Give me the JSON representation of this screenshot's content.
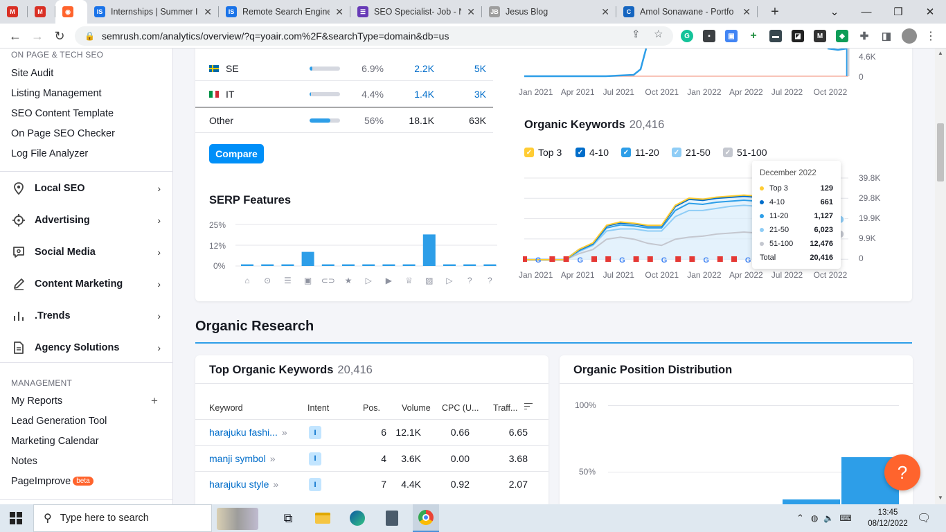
{
  "browser": {
    "tabs": [
      {
        "title": "",
        "favicon": "gmail-icon",
        "color": "#d93025"
      },
      {
        "title": "",
        "favicon": "gmail-icon",
        "color": "#d93025"
      },
      {
        "title": "",
        "favicon": "semrush-icon",
        "color": "#ff642d"
      },
      {
        "title": "Internships | Summer Int",
        "favicon": "IS",
        "color": "#1a73e8"
      },
      {
        "title": "Remote Search Engine O",
        "favicon": "IS",
        "color": "#1a73e8"
      },
      {
        "title": "SEO Specialist- Job - Nit",
        "favicon": "form-icon",
        "color": "#673ab7"
      },
      {
        "title": "Jesus Blog",
        "favicon": "JB",
        "color": "#9e9e9e"
      },
      {
        "title": "Amol Sonawane - Portfo",
        "favicon": "C",
        "color": "#1565c0"
      }
    ],
    "url": "semrush.com/analytics/overview/?q=yoair.com%2F&searchType=domain&db=us"
  },
  "sidebar": {
    "section_onpage": "ON PAGE & TECH SEO",
    "onpage_links": [
      "Site Audit",
      "Listing Management",
      "SEO Content Template",
      "On Page SEO Checker",
      "Log File Analyzer"
    ],
    "main_items": [
      {
        "label": "Local SEO",
        "icon": "location-pin-icon"
      },
      {
        "label": "Advertising",
        "icon": "crosshair-icon"
      },
      {
        "label": "Social Media",
        "icon": "chat-bubble-icon"
      },
      {
        "label": "Content Marketing",
        "icon": "pencil-icon"
      },
      {
        "label": ".Trends",
        "icon": "bar-chart-icon"
      },
      {
        "label": "Agency Solutions",
        "icon": "document-icon"
      }
    ],
    "section_management": "MANAGEMENT",
    "management_links": [
      "My Reports",
      "Lead Generation Tool",
      "Marketing Calendar",
      "Notes",
      "PageImprove"
    ],
    "beta_label": "beta"
  },
  "geo_table": {
    "rows": [
      {
        "country": "SE",
        "flag": "sweden-flag",
        "share": 0.069,
        "pct": "6.9%",
        "v1": "2.2K",
        "v2": "5K"
      },
      {
        "country": "IT",
        "flag": "italy-flag",
        "share": 0.044,
        "pct": "4.4%",
        "v1": "1.4K",
        "v2": "3K"
      },
      {
        "country": "Other",
        "flag": "",
        "share": 0.56,
        "pct": "56%",
        "v1": "18.1K",
        "v2": "63K"
      }
    ],
    "compare_label": "Compare"
  },
  "traffic_chart_top": {
    "x_ticks": [
      "Jan 2021",
      "Apr 2021",
      "Jul 2021",
      "Oct 2021",
      "Jan 2022",
      "Apr 2022",
      "Jul 2022",
      "Oct 2022"
    ],
    "y_ticks": [
      "4.6K",
      "0"
    ]
  },
  "serp_features": {
    "title": "SERP Features",
    "y_ticks": [
      "25%",
      "12%",
      "0%"
    ]
  },
  "organic_keywords": {
    "title": "Organic Keywords",
    "count": "20,416",
    "legend": [
      {
        "label": "Top 3",
        "color": "#ffcc33"
      },
      {
        "label": "4-10",
        "color": "#006dca"
      },
      {
        "label": "11-20",
        "color": "#2d9ee8"
      },
      {
        "label": "21-50",
        "color": "#8fcdf6"
      },
      {
        "label": "51-100",
        "color": "#c4c7cf"
      }
    ],
    "y_ticks": [
      "39.8K",
      "29.8K",
      "19.9K",
      "9.9K",
      "0"
    ],
    "x_ticks": [
      "Jan 2021",
      "Apr 2021",
      "Jul 2021",
      "Oct 2021",
      "Jan 2022",
      "Apr 2022",
      "Jul 2022",
      "Oct 2022"
    ],
    "tooltip": {
      "date": "December 2022",
      "rows": [
        {
          "label": "Top 3",
          "value": "129",
          "color": "#ffcc33"
        },
        {
          "label": "4-10",
          "value": "661",
          "color": "#006dca"
        },
        {
          "label": "11-20",
          "value": "1,127",
          "color": "#2d9ee8"
        },
        {
          "label": "21-50",
          "value": "6,023",
          "color": "#8fcdf6"
        },
        {
          "label": "51-100",
          "value": "12,476",
          "color": "#c4c7cf"
        }
      ],
      "total_label": "Total",
      "total_value": "20,416"
    }
  },
  "chart_data": [
    {
      "type": "bar",
      "title": "SERP Features",
      "categories": [
        "featured-snippet",
        "local-pack",
        "reviews",
        "image-pack",
        "sitelinks",
        "featured-star",
        "video",
        "video-carousel",
        "top-stories",
        "image",
        "video-2",
        "people-also-ask",
        "faq"
      ],
      "values": [
        1,
        1,
        1,
        8.5,
        1,
        1,
        1,
        1,
        1,
        19,
        1,
        1,
        1
      ],
      "ylim": [
        0,
        25
      ]
    },
    {
      "type": "area",
      "title": "Organic Keywords",
      "x": [
        "Jan 2021",
        "Feb 2021",
        "Mar 2021",
        "Apr 2021",
        "May 2021",
        "Jun 2021",
        "Jul 2021",
        "Aug 2021",
        "Sep 2021",
        "Oct 2021",
        "Nov 2021",
        "Dec 2021",
        "Jan 2022",
        "Feb 2022",
        "Mar 2022",
        "Apr 2022",
        "May 2022",
        "Jun 2022",
        "Jul 2022",
        "Aug 2022",
        "Sep 2022",
        "Oct 2022",
        "Nov 2022",
        "Dec 2022"
      ],
      "series": [
        {
          "name": "51-100",
          "values": [
            0,
            0,
            0,
            0,
            3000,
            5000,
            10000,
            11000,
            10000,
            8000,
            7000,
            10000,
            11000,
            11500,
            12500,
            13000,
            13500,
            13000,
            12500,
            12800,
            13000,
            12700,
            12600,
            12476
          ]
        },
        {
          "name": "21-50",
          "values": [
            0,
            0,
            0,
            0,
            4000,
            7000,
            14000,
            15000,
            15000,
            14000,
            14000,
            21000,
            24000,
            24000,
            25000,
            26000,
            26500,
            26000,
            25000,
            25500,
            25600,
            25000,
            25100,
            18499
          ]
        },
        {
          "name": "11-20",
          "values": [
            0,
            0,
            0,
            0,
            4500,
            7500,
            15500,
            17000,
            16500,
            15500,
            15500,
            24000,
            27500,
            27000,
            28000,
            28500,
            29000,
            28500,
            28000,
            28500,
            28700,
            28000,
            28100,
            19626
          ]
        },
        {
          "name": "4-10",
          "values": [
            0,
            0,
            0,
            0,
            5000,
            8000,
            16500,
            18000,
            17500,
            16500,
            16500,
            26000,
            29500,
            29000,
            30000,
            30500,
            31000,
            30500,
            30000,
            30500,
            30700,
            30000,
            30100,
            20287
          ]
        },
        {
          "name": "Top 3",
          "values": [
            0,
            0,
            0,
            0,
            5100,
            8200,
            16800,
            18400,
            17800,
            16800,
            16800,
            26500,
            30000,
            29500,
            30500,
            31000,
            31500,
            31000,
            30500,
            31000,
            31200,
            30500,
            30600,
            20416
          ]
        }
      ],
      "ylim": [
        0,
        39800
      ]
    }
  ],
  "organic_research": {
    "section_title": "Organic Research",
    "top_keywords_title": "Top Organic Keywords",
    "top_keywords_count": "20,416",
    "columns": [
      "Keyword",
      "Intent",
      "Pos.",
      "Volume",
      "CPC (U...",
      "Traff..."
    ],
    "rows": [
      {
        "keyword": "harajuku fashi...",
        "intent": "I",
        "pos": "6",
        "volume": "12.1K",
        "cpc": "0.66",
        "traffic": "6.65"
      },
      {
        "keyword": "manji symbol",
        "intent": "I",
        "pos": "4",
        "volume": "3.6K",
        "cpc": "0.00",
        "traffic": "3.68"
      },
      {
        "keyword": "harajuku style",
        "intent": "I",
        "pos": "7",
        "volume": "4.4K",
        "cpc": "0.92",
        "traffic": "2.07"
      }
    ],
    "position_dist_title": "Organic Position Distribution",
    "position_dist_y_ticks": [
      "100%",
      "50%"
    ]
  },
  "help_label": "?",
  "taskbar": {
    "search_placeholder": "Type here to search",
    "time": "13:45",
    "date": "08/12/2022"
  }
}
